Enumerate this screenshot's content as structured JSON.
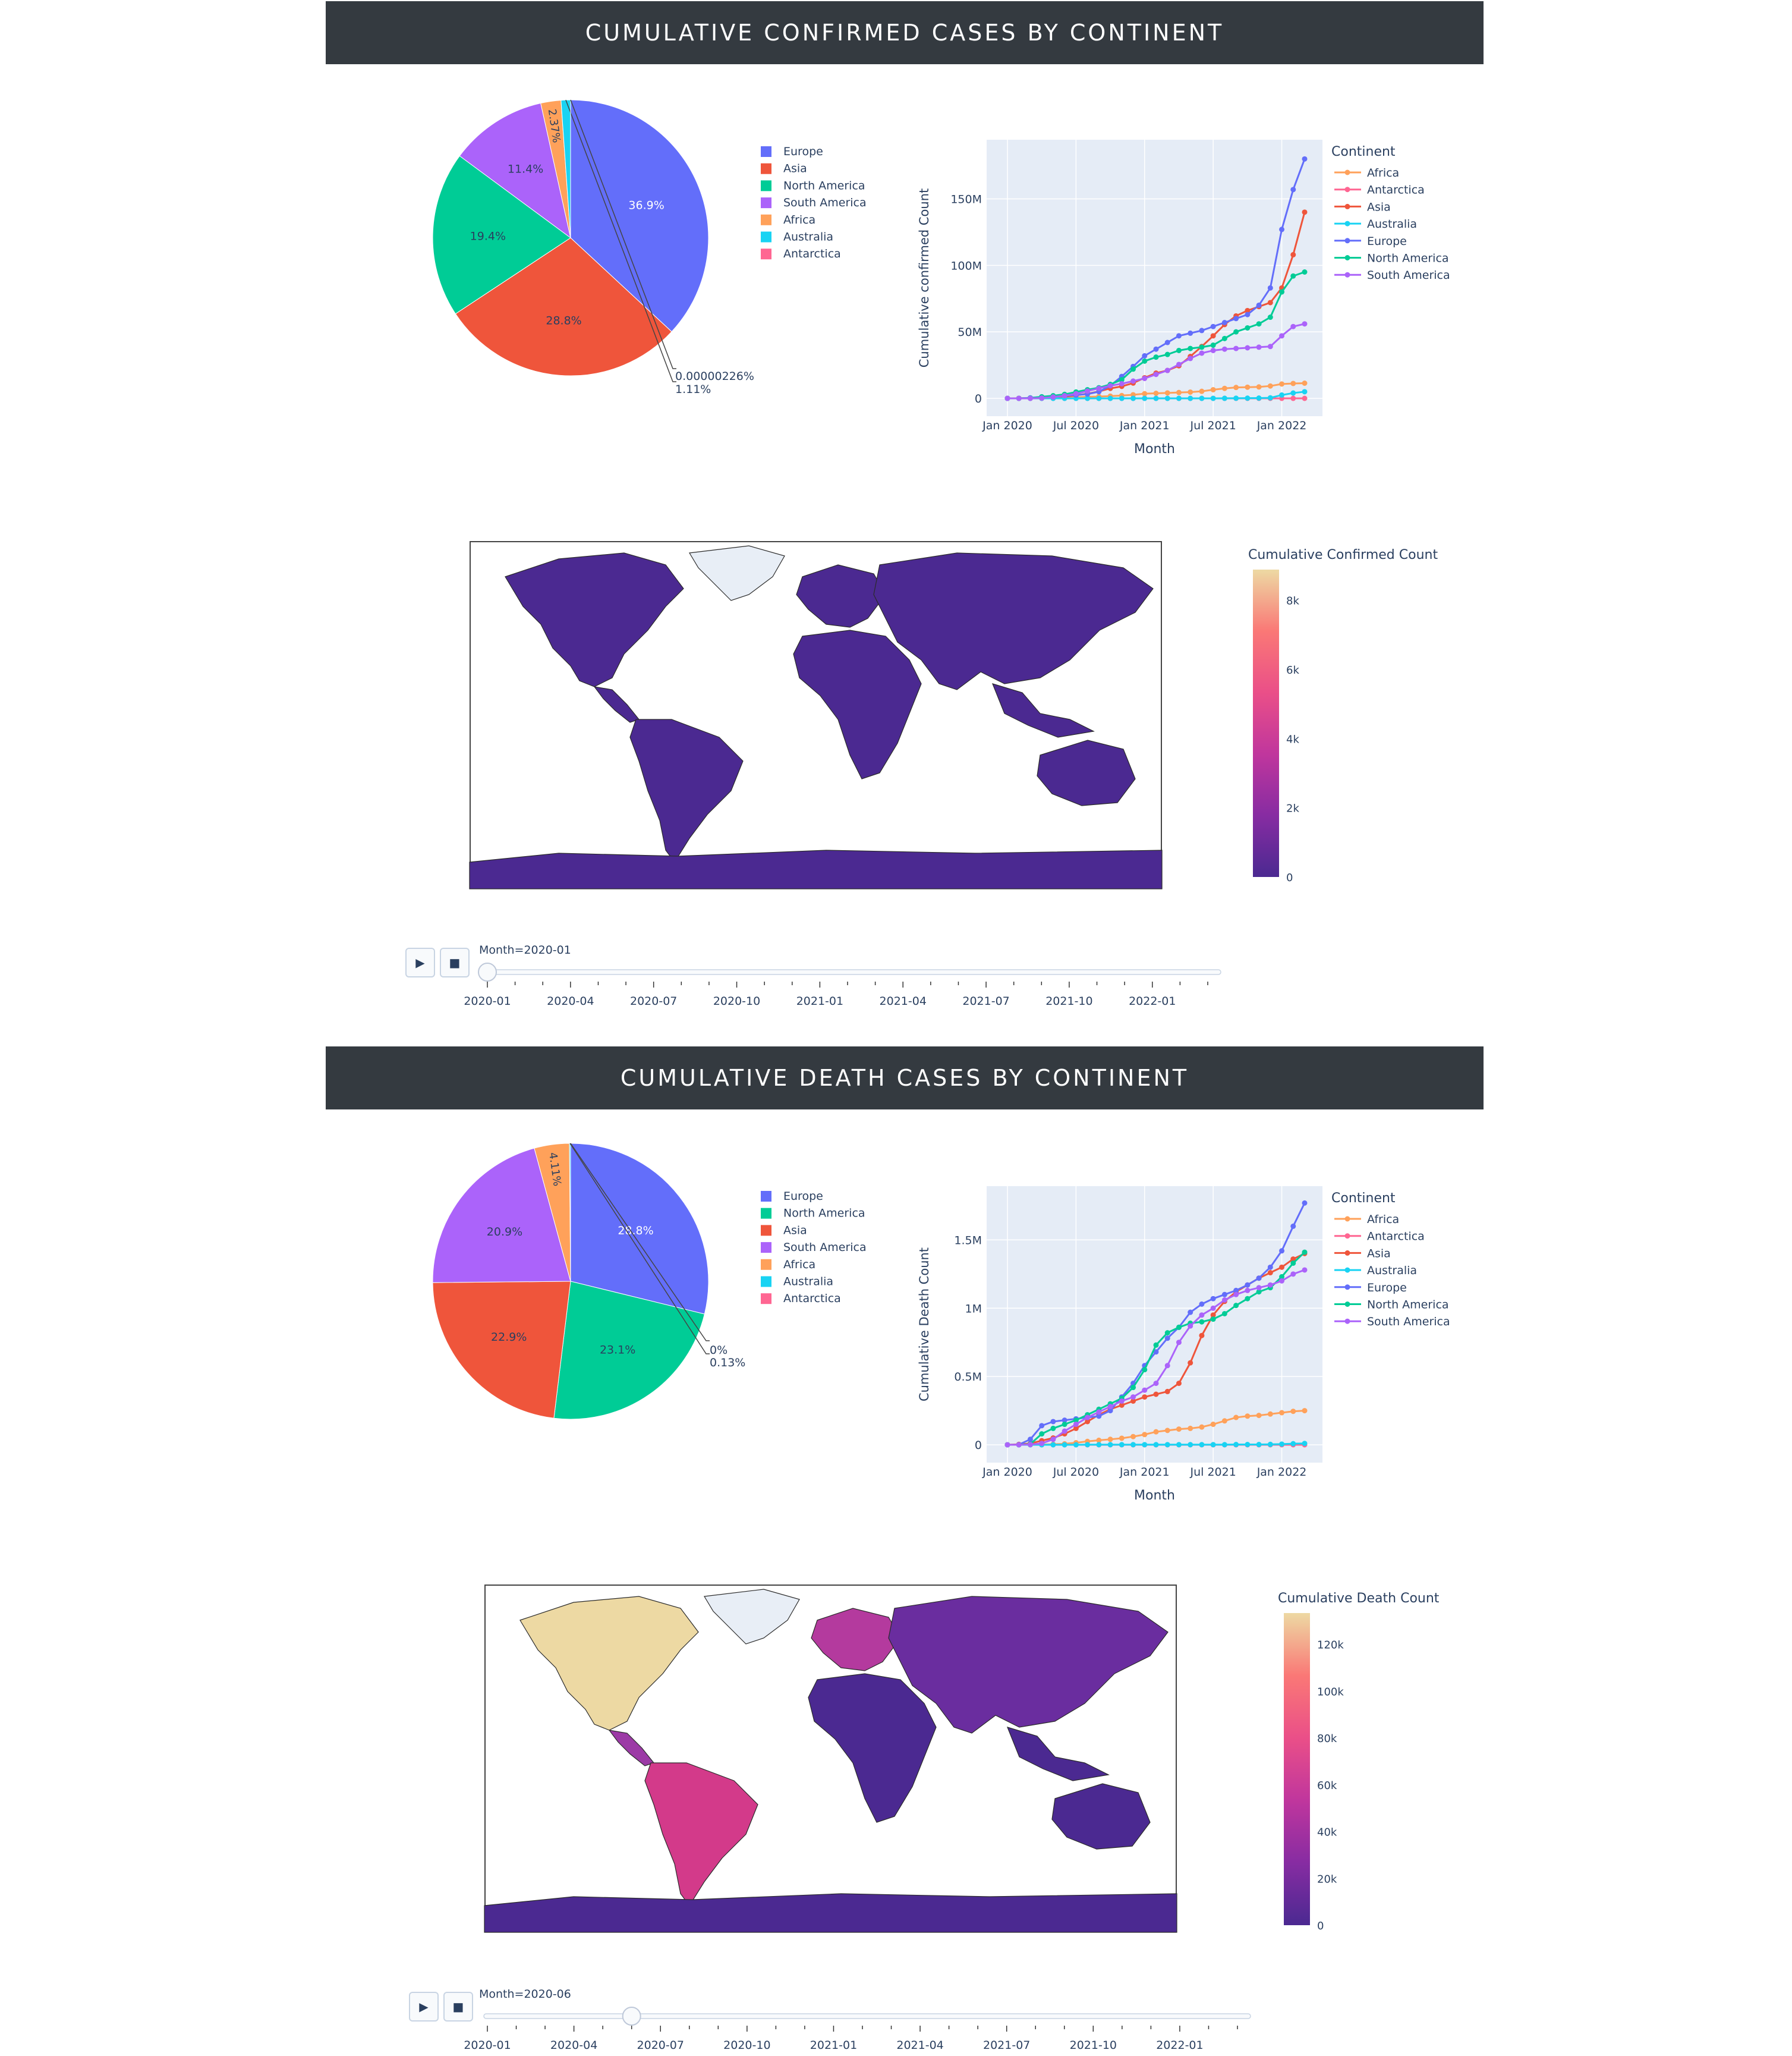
{
  "sections": [
    {
      "title": "CUMULATIVE CONFIRMED CASES BY CONTINENT",
      "pie": {
        "legend": [
          "Europe",
          "Asia",
          "North America",
          "South America",
          "Africa",
          "Australia",
          "Antarctica"
        ],
        "labels": [
          "36.9%",
          "28.8%",
          "19.4%",
          "11.4%",
          "2.37%",
          "1.11%",
          "0.00000226%"
        ]
      },
      "line": {
        "ylabel": "Cumulative confirmed Count",
        "xlabel": "Month",
        "legend_title": "Continent",
        "legend": [
          "Africa",
          "Antarctica",
          "Asia",
          "Australia",
          "Europe",
          "North America",
          "South America"
        ],
        "yticks": [
          "0",
          "50M",
          "100M",
          "150M"
        ],
        "xticks": [
          "Jan 2020",
          "Jul 2020",
          "Jan 2021",
          "Jul 2021",
          "Jan 2022"
        ]
      },
      "colorbar": {
        "title": "Cumulative Confirmed Count",
        "ticks": [
          "0",
          "2k",
          "4k",
          "6k",
          "8k"
        ]
      },
      "slider": {
        "label": "Month=2020-01",
        "ticks": [
          "2020-01",
          "2020-04",
          "2020-07",
          "2020-10",
          "2021-01",
          "2021-04",
          "2021-07",
          "2021-10",
          "2022-01"
        ]
      }
    },
    {
      "title": "CUMULATIVE DEATH CASES BY CONTINENT",
      "pie": {
        "legend": [
          "Europe",
          "North America",
          "Asia",
          "South America",
          "Africa",
          "Australia",
          "Antarctica"
        ],
        "labels": [
          "28.8%",
          "23.1%",
          "22.9%",
          "20.9%",
          "4.11%",
          "0.13%",
          "0%"
        ]
      },
      "line": {
        "ylabel": "Cumulative Death Count",
        "xlabel": "Month",
        "legend_title": "Continent",
        "legend": [
          "Africa",
          "Antarctica",
          "Asia",
          "Australia",
          "Europe",
          "North America",
          "South America"
        ],
        "yticks": [
          "0",
          "0.5M",
          "1M",
          "1.5M"
        ],
        "xticks": [
          "Jan 2020",
          "Jul 2020",
          "Jan 2021",
          "Jul 2021",
          "Jan 2022"
        ]
      },
      "colorbar": {
        "title": "Cumulative Death Count",
        "ticks": [
          "0",
          "20k",
          "40k",
          "60k",
          "80k",
          "100k",
          "120k"
        ]
      },
      "slider": {
        "label": "Month=2020-06",
        "ticks": [
          "2020-01",
          "2020-04",
          "2020-07",
          "2020-10",
          "2021-01",
          "2021-04",
          "2021-07",
          "2021-10",
          "2022-01"
        ]
      }
    }
  ],
  "colors": {
    "Europe": "#636efa",
    "Asia": "#ef553b",
    "North America": "#00cc96",
    "South America": "#ab63fa",
    "Africa": "#ffa15a",
    "Australia": "#19d3f3",
    "Antarctica": "#ff6692"
  },
  "chart_data": [
    {
      "type": "pie",
      "title": "CUMULATIVE CONFIRMED CASES BY CONTINENT",
      "categories": [
        "Europe",
        "Asia",
        "North America",
        "South America",
        "Africa",
        "Australia",
        "Antarctica"
      ],
      "values": [
        36.9,
        28.8,
        19.4,
        11.4,
        2.37,
        1.11,
        2.26e-06
      ]
    },
    {
      "type": "line",
      "xlabel": "Month",
      "ylabel": "Cumulative confirmed Count",
      "ylim": [
        0,
        190000000
      ],
      "x": [
        "2020-01",
        "2020-02",
        "2020-03",
        "2020-04",
        "2020-05",
        "2020-06",
        "2020-07",
        "2020-08",
        "2020-09",
        "2020-10",
        "2020-11",
        "2020-12",
        "2021-01",
        "2021-02",
        "2021-03",
        "2021-04",
        "2021-05",
        "2021-06",
        "2021-07",
        "2021-08",
        "2021-09",
        "2021-10",
        "2021-11",
        "2021-12",
        "2022-01",
        "2022-02",
        "2022-03"
      ],
      "series": [
        {
          "name": "Africa",
          "values": [
            0,
            0,
            0.01,
            0.04,
            0.15,
            0.4,
            0.8,
            1.1,
            1.4,
            1.7,
            2.1,
            2.7,
            3.5,
            3.8,
            4.1,
            4.4,
            4.7,
            5.3,
            6.5,
            7.5,
            8.2,
            8.4,
            8.6,
            9.3,
            10.8,
            11.2,
            11.4
          ]
        },
        {
          "name": "Antarctica",
          "values": [
            0,
            0,
            0,
            0,
            0,
            0,
            0,
            0,
            0,
            0,
            0,
            0,
            0,
            0,
            0,
            0,
            0,
            0,
            0,
            0,
            0,
            0,
            0,
            0,
            0,
            0,
            0
          ]
        },
        {
          "name": "Asia",
          "values": [
            0.01,
            0.08,
            0.2,
            0.4,
            0.7,
            1.3,
            2.3,
            3.5,
            5.2,
            7.5,
            9.0,
            11.5,
            15.5,
            19.0,
            21.0,
            24.5,
            31.5,
            39.0,
            47.0,
            55.5,
            62.0,
            66.0,
            69.0,
            72.0,
            83.0,
            108.0,
            140.0
          ]
        },
        {
          "name": "Australia",
          "values": [
            0,
            0,
            0,
            0,
            0,
            0,
            0,
            0,
            0,
            0,
            0,
            0,
            0,
            0,
            0,
            0,
            0,
            0,
            0.02,
            0.05,
            0.1,
            0.15,
            0.2,
            0.4,
            2.5,
            4.0,
            5.0
          ]
        },
        {
          "name": "Europe",
          "values": [
            0,
            0,
            0.4,
            1.1,
            1.5,
            2.0,
            2.5,
            3.2,
            5.0,
            9.5,
            16.5,
            24.0,
            32.0,
            37.0,
            42.0,
            47.0,
            49.0,
            51.0,
            54.0,
            57.0,
            60.0,
            63.0,
            70.0,
            83.0,
            127.0,
            157.0,
            180.0
          ]
        },
        {
          "name": "North America",
          "values": [
            0,
            0,
            0.2,
            1.2,
            2.0,
            3.0,
            4.8,
            6.5,
            8.0,
            10.5,
            14.0,
            22.0,
            28.0,
            31.0,
            33.0,
            36.0,
            37.5,
            38.5,
            40.0,
            45.0,
            50.0,
            53.0,
            56.0,
            61.0,
            80.0,
            92.0,
            95.0
          ]
        },
        {
          "name": "South America",
          "values": [
            0,
            0,
            0.02,
            0.2,
            1.0,
            2.0,
            3.5,
            5.5,
            7.5,
            9.5,
            11.0,
            13.0,
            15.0,
            18.0,
            21.0,
            25.5,
            30.0,
            34.0,
            36.0,
            37.0,
            37.5,
            38.0,
            38.5,
            39.0,
            47.0,
            54.0,
            56.0
          ]
        }
      ]
    },
    {
      "type": "pie",
      "title": "CUMULATIVE DEATH CASES BY CONTINENT",
      "categories": [
        "Europe",
        "North America",
        "Asia",
        "South America",
        "Africa",
        "Australia",
        "Antarctica"
      ],
      "values": [
        28.8,
        23.1,
        22.9,
        20.9,
        4.11,
        0.13,
        0
      ]
    },
    {
      "type": "line",
      "xlabel": "Month",
      "ylabel": "Cumulative Death Count",
      "ylim": [
        0,
        1850000
      ],
      "x": [
        "2020-01",
        "2020-02",
        "2020-03",
        "2020-04",
        "2020-05",
        "2020-06",
        "2020-07",
        "2020-08",
        "2020-09",
        "2020-10",
        "2020-11",
        "2020-12",
        "2021-01",
        "2021-02",
        "2021-03",
        "2021-04",
        "2021-05",
        "2021-06",
        "2021-07",
        "2021-08",
        "2021-09",
        "2021-10",
        "2021-11",
        "2021-12",
        "2022-01",
        "2022-02",
        "2022-03"
      ],
      "series": [
        {
          "name": "Africa",
          "values": [
            0,
            0,
            0.0005,
            0.002,
            0.004,
            0.007,
            0.015,
            0.025,
            0.033,
            0.04,
            0.048,
            0.06,
            0.075,
            0.095,
            0.105,
            0.115,
            0.12,
            0.13,
            0.15,
            0.175,
            0.2,
            0.21,
            0.215,
            0.225,
            0.235,
            0.245,
            0.25
          ]
        },
        {
          "name": "Antarctica",
          "values": [
            0,
            0,
            0,
            0,
            0,
            0,
            0,
            0,
            0,
            0,
            0,
            0,
            0,
            0,
            0,
            0,
            0,
            0,
            0,
            0,
            0,
            0,
            0,
            0,
            0,
            0,
            0
          ]
        },
        {
          "name": "Asia",
          "values": [
            0.0002,
            0.003,
            0.01,
            0.03,
            0.05,
            0.08,
            0.12,
            0.17,
            0.22,
            0.26,
            0.29,
            0.32,
            0.35,
            0.37,
            0.39,
            0.45,
            0.6,
            0.8,
            0.95,
            1.05,
            1.12,
            1.17,
            1.22,
            1.26,
            1.3,
            1.36,
            1.4
          ]
        },
        {
          "name": "Australia",
          "values": [
            0,
            0,
            0,
            0,
            0,
            0,
            0,
            0.001,
            0.001,
            0.001,
            0.001,
            0.001,
            0.001,
            0.001,
            0.001,
            0.001,
            0.001,
            0.001,
            0.001,
            0.001,
            0.002,
            0.002,
            0.002,
            0.003,
            0.005,
            0.008,
            0.01
          ]
        },
        {
          "name": "Europe",
          "values": [
            0,
            0.001,
            0.04,
            0.14,
            0.17,
            0.18,
            0.19,
            0.2,
            0.21,
            0.25,
            0.35,
            0.45,
            0.58,
            0.68,
            0.78,
            0.86,
            0.97,
            1.03,
            1.07,
            1.1,
            1.13,
            1.17,
            1.22,
            1.3,
            1.42,
            1.6,
            1.77
          ]
        },
        {
          "name": "North America",
          "values": [
            0,
            0,
            0.005,
            0.08,
            0.12,
            0.15,
            0.18,
            0.22,
            0.26,
            0.3,
            0.34,
            0.42,
            0.55,
            0.73,
            0.82,
            0.86,
            0.89,
            0.9,
            0.92,
            0.96,
            1.02,
            1.07,
            1.12,
            1.15,
            1.23,
            1.33,
            1.41
          ]
        },
        {
          "name": "South America",
          "values": [
            0,
            0,
            0.002,
            0.01,
            0.04,
            0.1,
            0.15,
            0.2,
            0.24,
            0.28,
            0.32,
            0.35,
            0.4,
            0.45,
            0.58,
            0.75,
            0.87,
            0.95,
            1.0,
            1.06,
            1.1,
            1.13,
            1.15,
            1.17,
            1.2,
            1.25,
            1.28
          ]
        }
      ]
    }
  ]
}
